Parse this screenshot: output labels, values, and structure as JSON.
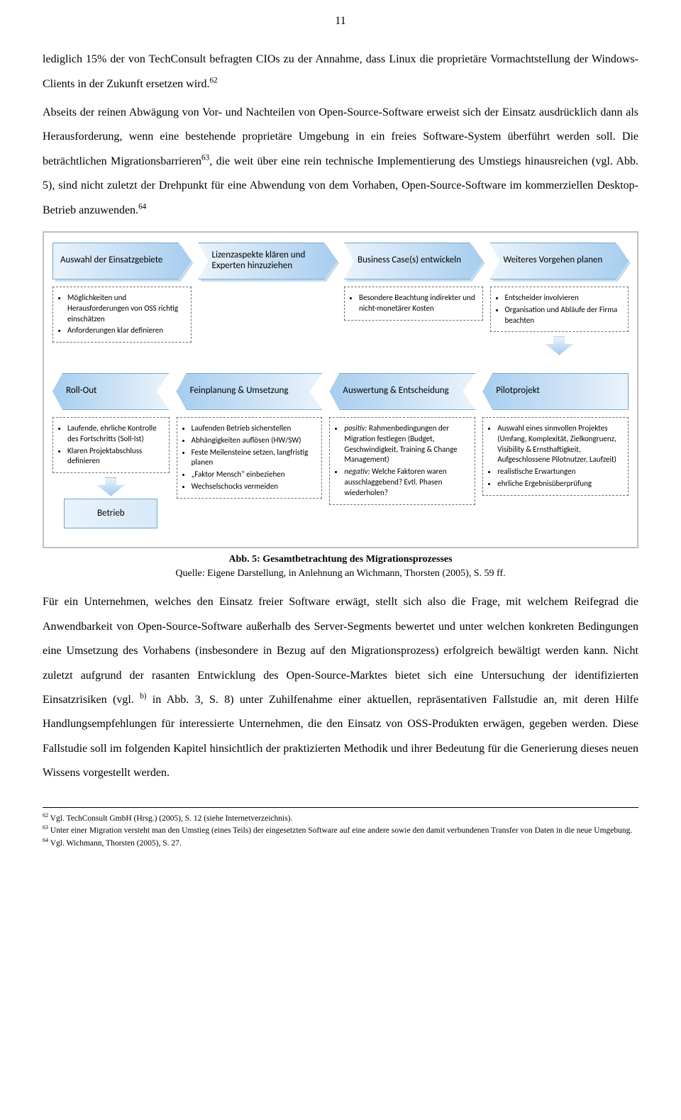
{
  "page_number": "11",
  "para1_pre": "lediglich 15% der von TechConsult befragten CIOs zu der Annahme, dass Linux die proprietäre Vormachtstellung der Windows-Clients in der Zukunft ersetzen wird.",
  "para1_sup": "62",
  "para2_pre": "Abseits der reinen Abwägung von Vor- und Nachteilen von Open-Source-Software erweist sich der Einsatz ausdrücklich dann als Herausforderung, wenn eine bestehende proprietäre Umgebung in ein freies Software-System überführt werden soll. Die beträchtlichen Migrationsbarrieren",
  "para2_sup1": "63",
  "para2_mid": ", die weit über eine rein technische Implementierung des Umstiegs hinausreichen (vgl. Abb. 5), sind nicht zuletzt der Drehpunkt für eine Abwendung von dem Vorhaben, Open-Source-Software im kommerziellen Desktop-Betrieb anzuwenden.",
  "para2_sup2": "64",
  "fig": {
    "row1": [
      {
        "title": "Auswahl der Einsatzgebiete",
        "items": [
          "Möglichkeiten und Herausforderungen von OSS richtig einschätzen",
          "Anforderungen klar definieren"
        ]
      },
      {
        "title": "Lizenzaspekte klären und Experten hinzuziehen",
        "items": []
      },
      {
        "title": "Business Case(s) entwickeln",
        "items": [
          "Besondere Beachtung indirekter und nicht-monetärer Kosten"
        ]
      },
      {
        "title": "Weiteres Vorgehen planen",
        "items": [
          "Entscheider involvieren",
          "Organisation und Abläufe der Firma beachten"
        ]
      }
    ],
    "row2": [
      {
        "title": "Roll-Out",
        "items": [
          "Laufende, ehrliche Kontrolle des Fortschritts (Soll-Ist)",
          "Klaren Projektabschluss definieren"
        ]
      },
      {
        "title": "Feinplanung & Umsetzung",
        "items": [
          "Laufenden Betrieb sicherstellen",
          "Abhängigkeiten auflösen (HW/SW)",
          "Feste Meilensteine setzen, langfristig planen",
          "„Faktor Mensch\" einbeziehen",
          "Wechselschocks vermeiden"
        ]
      },
      {
        "title": "Auswertung & Entscheidung",
        "items_html": "<li><i>positiv:</i> Rahmenbedingungen der Migration festlegen (Budget, Geschwindigkeit, Training & Change Management)</li><li><i>negativ:</i> Welche Faktoren waren ausschlaggebend? Evtl. Phasen wiederholen?</li>"
      },
      {
        "title": "Pilotprojekt",
        "items": [
          "Auswahl eines sinnvollen Projektes (Umfang, Komplexität, Zielkongruenz, Visibility & Ernsthaftigkeit, Aufgeschlossene Pilotnutzer, Laufzeit)",
          "realistische Erwartungen",
          "ehrliche Ergebnisüberprüfung"
        ]
      }
    ],
    "betrieb_label": "Betrieb"
  },
  "caption_bold": "Abb. 5: Gesamtbetrachtung des Migrationsprozesses",
  "caption_sub": "Quelle: Eigene Darstellung, in Anlehnung an Wichmann, Thorsten (2005), S. 59 ff.",
  "para3_pre": "Für ein Unternehmen, welches den Einsatz freier Software erwägt, stellt sich also die Frage, mit welchem Reifegrad die Anwendbarkeit von Open-Source-Software außerhalb des Server-Segments bewertet und unter welchen konkreten Bedingungen eine Umsetzung des Vorhabens (insbesondere in Bezug auf den Migrationsprozess) erfolgreich bewältigt werden kann. Nicht zuletzt aufgrund der rasanten Entwicklung des Open-Source-Marktes bietet sich eine Untersuchung der identifizierten Einsatzrisiken (vgl. ",
  "para3_sup": "b)",
  "para3_post": " in Abb. 3, S. 8) unter Zuhilfenahme einer aktuellen, repräsentativen Fallstudie an, mit deren Hilfe Handlungsempfehlungen für interessierte Unternehmen, die den Einsatz von OSS-Produkten erwägen, gegeben werden. Diese Fallstudie soll im folgenden Kapitel hinsichtlich der praktizierten Methodik und ihrer Bedeutung für die Generierung dieses neuen Wissens vorgestellt werden.",
  "footnotes": {
    "62": "Vgl. TechConsult GmbH (Hrsg.) (2005), S. 12 (siehe Internetverzeichnis).",
    "63": "Unter einer Migration versteht man den Umstieg (eines Teils) der eingesetzten Software auf eine andere sowie den damit verbundenen Transfer von Daten in die neue Umgebung.",
    "64": "Vgl. Wichmann, Thorsten (2005), S. 27."
  }
}
